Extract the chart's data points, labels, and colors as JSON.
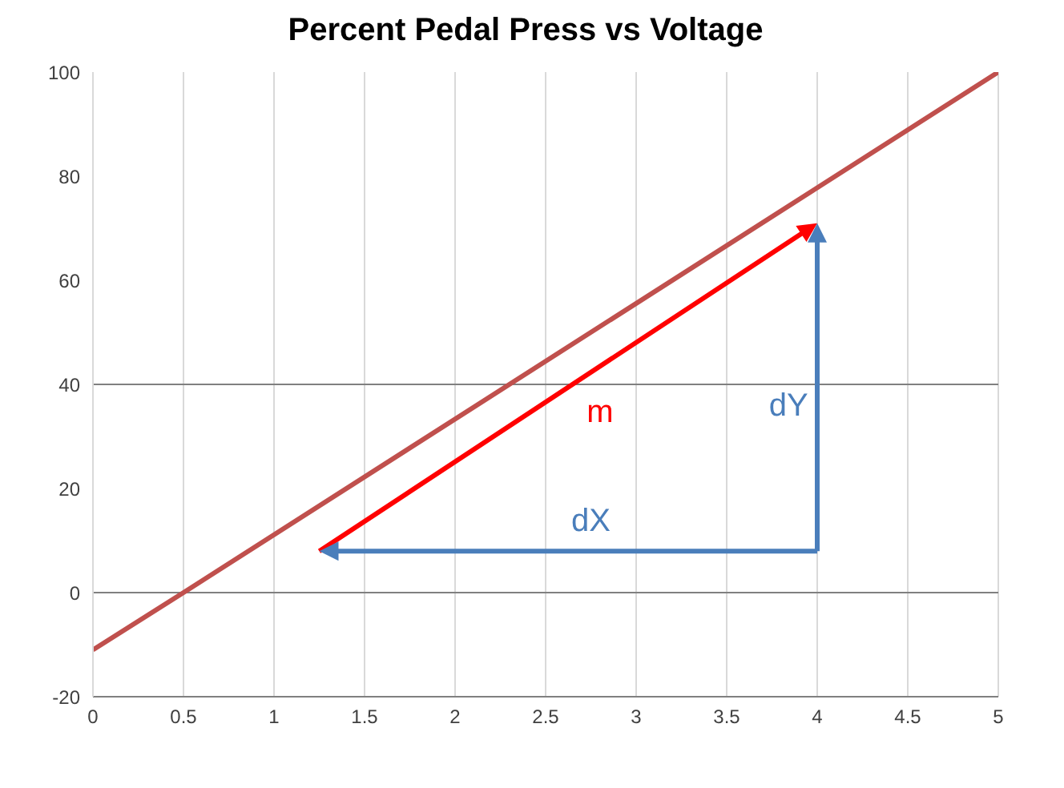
{
  "chart_data": {
    "type": "line",
    "title": "Percent Pedal Press vs Voltage",
    "x": [
      0,
      0.5,
      5
    ],
    "series": [
      {
        "color": "#c0504d",
        "values": [
          -11,
          0,
          100
        ]
      }
    ],
    "xlim": [
      0,
      5
    ],
    "xticks": [
      0,
      0.5,
      1,
      1.5,
      2,
      2.5,
      3,
      3.5,
      4,
      4.5,
      5
    ],
    "ylim": [
      -20,
      100
    ],
    "yticks": [
      -20,
      0,
      20,
      40,
      60,
      80,
      100
    ],
    "grid": "x",
    "marker": "none",
    "line_style": "solid",
    "ref_lines": [
      {
        "axis": "y",
        "value": 0,
        "color": "#808080"
      },
      {
        "axis": "y",
        "value": 40,
        "color": "#808080"
      }
    ],
    "annotations": [
      "m",
      "dX",
      "dY"
    ]
  }
}
